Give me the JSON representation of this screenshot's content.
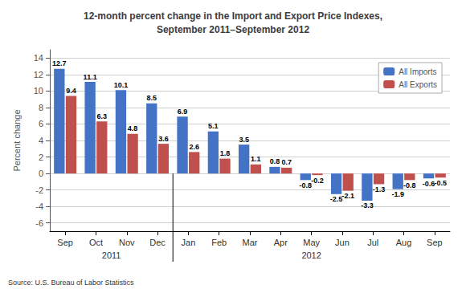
{
  "chart_data": {
    "type": "bar",
    "title": "12-month percent change in the Import and Export Price Indexes,\nSeptember 2011–September 2012",
    "categories": [
      "Sep",
      "Oct",
      "Nov",
      "Dec",
      "Jan",
      "Feb",
      "Mar",
      "Apr",
      "May",
      "Jun",
      "Jul",
      "Aug",
      "Sep"
    ],
    "series": [
      {
        "name": "All Imports",
        "color": "#4472C4",
        "values": [
          12.7,
          11.1,
          10.1,
          8.5,
          6.9,
          5.1,
          3.5,
          0.8,
          -0.8,
          -2.5,
          -3.3,
          -1.9,
          -0.6
        ]
      },
      {
        "name": "All Exports",
        "color": "#C0504D",
        "values": [
          9.4,
          6.3,
          4.8,
          3.6,
          2.6,
          1.8,
          1.1,
          0.7,
          -0.2,
          -2.1,
          -1.3,
          -0.8,
          -0.5
        ]
      }
    ],
    "ylabel": "Percent change",
    "ylim": [
      -7,
      15
    ],
    "yticks": [
      -6,
      -4,
      -2,
      0,
      2,
      4,
      6,
      8,
      10,
      12,
      14
    ],
    "grid": true,
    "legend": "upper right",
    "data_labels": true,
    "annotations": [
      "2011",
      "2012",
      "Source: U.S. Bureau of Labor Statistics"
    ]
  }
}
